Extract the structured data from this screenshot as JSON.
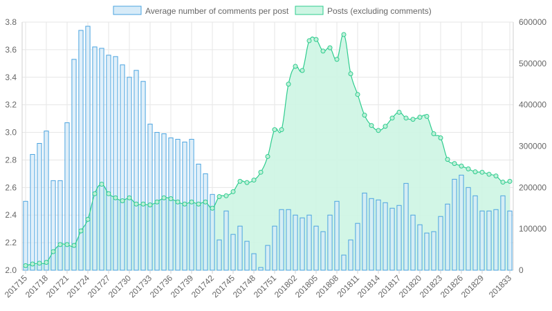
{
  "chart_data": {
    "type": "bar",
    "categories": [
      "201715",
      "201716",
      "201717",
      "201718",
      "201719",
      "201720",
      "201721",
      "201722",
      "201723",
      "201724",
      "201725",
      "201726",
      "201727",
      "201728",
      "201729",
      "201730",
      "201731",
      "201732",
      "201733",
      "201734",
      "201735",
      "201736",
      "201737",
      "201738",
      "201739",
      "201740",
      "201741",
      "201742",
      "201743",
      "201744",
      "201745",
      "201746",
      "201747",
      "201748",
      "201749",
      "201750",
      "201751",
      "201752",
      "201801",
      "201802",
      "201803",
      "201804",
      "201805",
      "201806",
      "201807",
      "201808",
      "201809",
      "201810",
      "201811",
      "201812",
      "201813",
      "201814",
      "201815",
      "201816",
      "201817",
      "201818",
      "201819",
      "201820",
      "201821",
      "201822",
      "201823",
      "201824",
      "201825",
      "201826",
      "201827",
      "201828",
      "201829",
      "201830",
      "201831",
      "201832",
      "201833"
    ],
    "x_tick_labels": [
      "201715",
      "201718",
      "201721",
      "201724",
      "201727",
      "201730",
      "201733",
      "201736",
      "201739",
      "201742",
      "201745",
      "201748",
      "201751",
      "201802",
      "201805",
      "201808",
      "201811",
      "201814",
      "201817",
      "201820",
      "201823",
      "201826",
      "201829",
      "201833"
    ],
    "series": [
      {
        "name": "Average number of comments per post",
        "type": "bar",
        "axis": "left",
        "color_fill": "#d7ebf8",
        "color_border": "#4aa3df",
        "values": [
          2.5,
          2.84,
          2.92,
          3.01,
          2.65,
          2.65,
          3.07,
          3.53,
          3.74,
          3.77,
          3.62,
          3.61,
          3.56,
          3.55,
          3.49,
          3.4,
          3.45,
          3.37,
          3.06,
          3.0,
          2.99,
          2.96,
          2.95,
          2.93,
          2.95,
          2.77,
          2.7,
          2.55,
          2.22,
          2.43,
          2.26,
          2.32,
          2.21,
          2.12,
          2.02,
          2.18,
          2.32,
          2.44,
          2.44,
          2.4,
          2.38,
          2.4,
          2.32,
          2.28,
          2.4,
          2.5,
          2.11,
          2.22,
          2.34,
          2.56,
          2.52,
          2.51,
          2.49,
          2.45,
          2.47,
          2.63,
          2.4,
          2.33,
          2.27,
          2.28,
          2.39,
          2.48,
          2.66,
          2.69,
          2.6,
          2.54,
          2.43,
          2.43,
          2.44,
          2.54,
          2.43
        ]
      },
      {
        "name": "Posts (excluding comments)",
        "type": "area",
        "axis": "right",
        "color_fill": "#cdf5e3",
        "color_border": "#2ecc8e",
        "values": [
          11000,
          15000,
          17000,
          19000,
          45000,
          62000,
          62000,
          60000,
          95000,
          123000,
          185000,
          208000,
          185000,
          175000,
          168000,
          175000,
          160000,
          160000,
          158000,
          165000,
          175000,
          173000,
          165000,
          160000,
          165000,
          160000,
          165000,
          150000,
          178000,
          180000,
          190000,
          215000,
          212000,
          218000,
          237000,
          275000,
          340000,
          340000,
          450000,
          493000,
          483000,
          555000,
          558000,
          530000,
          538000,
          510000,
          570000,
          475000,
          425000,
          375000,
          350000,
          338000,
          348000,
          368000,
          382000,
          368000,
          365000,
          370000,
          372000,
          330000,
          320000,
          268000,
          258000,
          252000,
          245000,
          238000,
          237000,
          232000,
          228000,
          213000,
          215000
        ]
      }
    ],
    "y_left": {
      "min": 2.0,
      "max": 3.8,
      "ticks": [
        "2.0",
        "2.2",
        "2.4",
        "2.6",
        "2.8",
        "3.0",
        "3.2",
        "3.4",
        "3.6",
        "3.8"
      ]
    },
    "y_right": {
      "min": 0,
      "max": 600000,
      "ticks": [
        "0",
        "100000",
        "200000",
        "300000",
        "400000",
        "500000",
        "600000"
      ]
    },
    "grid": true,
    "legend_position": "top"
  }
}
